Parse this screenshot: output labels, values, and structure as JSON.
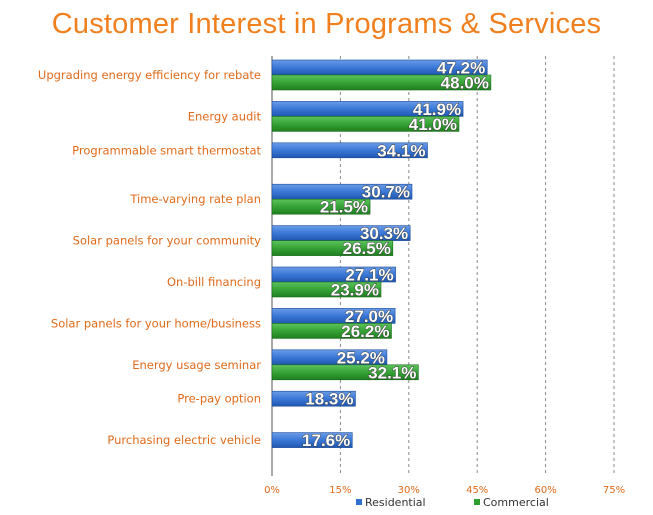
{
  "chart_data": {
    "type": "bar",
    "orientation": "horizontal",
    "title": "Customer Interest in Programs & Services",
    "categories": [
      "Upgrading energy efficiency for rebate",
      "Energy audit",
      "Programmable smart thermostat",
      "Time-varying rate plan",
      "Solar panels for your community",
      "On-bill financing",
      "Solar panels for your home/business",
      "Energy usage seminar",
      "Pre-pay option",
      "Purchasing electric vehicle"
    ],
    "series": [
      {
        "name": "Residential",
        "color": "#2f6fd0",
        "values": [
          47.2,
          41.9,
          34.1,
          30.7,
          30.3,
          27.1,
          27.0,
          25.2,
          18.3,
          17.6
        ]
      },
      {
        "name": "Commercial",
        "color": "#2e9e2e",
        "values": [
          48.0,
          41.0,
          null,
          21.5,
          26.5,
          23.9,
          26.2,
          32.1,
          null,
          null
        ]
      }
    ],
    "data_labels": [
      [
        "47.2%",
        "41.9%",
        "34.1%",
        "30.7%",
        "30.3%",
        "27.1%",
        "27.0%",
        "25.2%",
        "18.3%",
        "17.6%"
      ],
      [
        "48.0%",
        "41.0%",
        "",
        "21.5%",
        "26.5%",
        "23.9%",
        "26.2%",
        "32.1%",
        "",
        ""
      ]
    ],
    "x_ticks": [
      "0%",
      "15%",
      "30%",
      "45%",
      "60%",
      "75%"
    ],
    "xlim": [
      0,
      75
    ],
    "grid": "vertical dashed",
    "legend_position": "bottom"
  }
}
